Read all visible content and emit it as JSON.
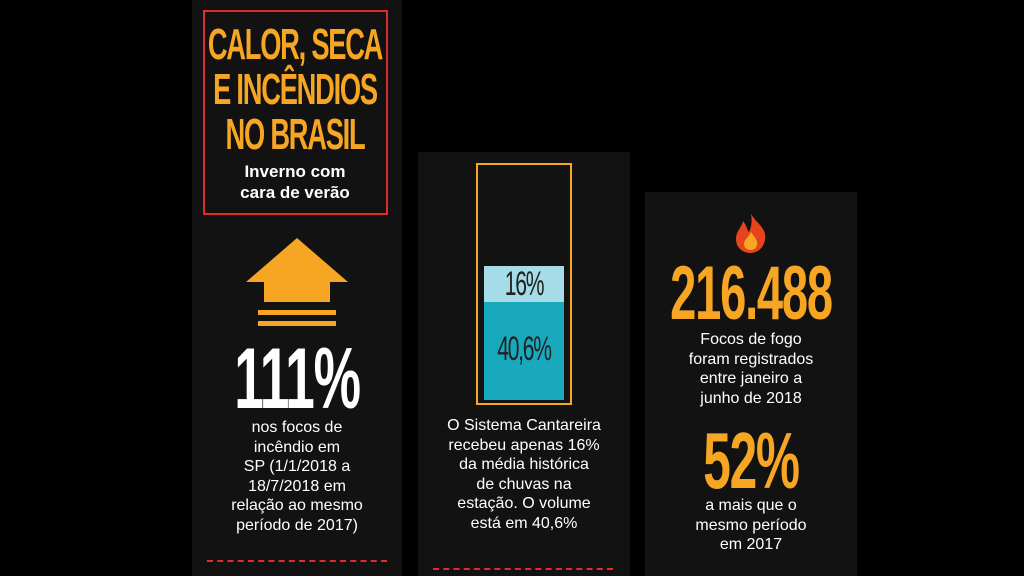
{
  "header": {
    "title_lines": [
      "CALOR, SECA",
      "E INCÊNDIOS",
      "NO BRASIL"
    ],
    "subtitle_lines": [
      "Inverno com",
      "cara de verão"
    ]
  },
  "panels": [
    {
      "stat": "111%",
      "text_lines": [
        "nos focos de",
        "incêndio em",
        "SP (1/1/2018 a",
        "18/7/2018 em",
        "relação ao mesmo",
        "período de 2017)"
      ]
    },
    {
      "levels": [
        "16%",
        "40,6%"
      ],
      "text_lines": [
        "O Sistema Cantareira",
        "recebeu apenas 16%",
        "da média histórica",
        "de chuvas na",
        "estação. O volume",
        "está em 40,6%"
      ]
    },
    {
      "stat": "216.488",
      "text_lines": [
        "Focos de fogo",
        "foram registrados",
        "entre janeiro a",
        "junho de 2018"
      ],
      "stat2": "52%",
      "text2_lines": [
        "a mais que o",
        "mesmo período",
        "em 2017"
      ]
    }
  ]
}
